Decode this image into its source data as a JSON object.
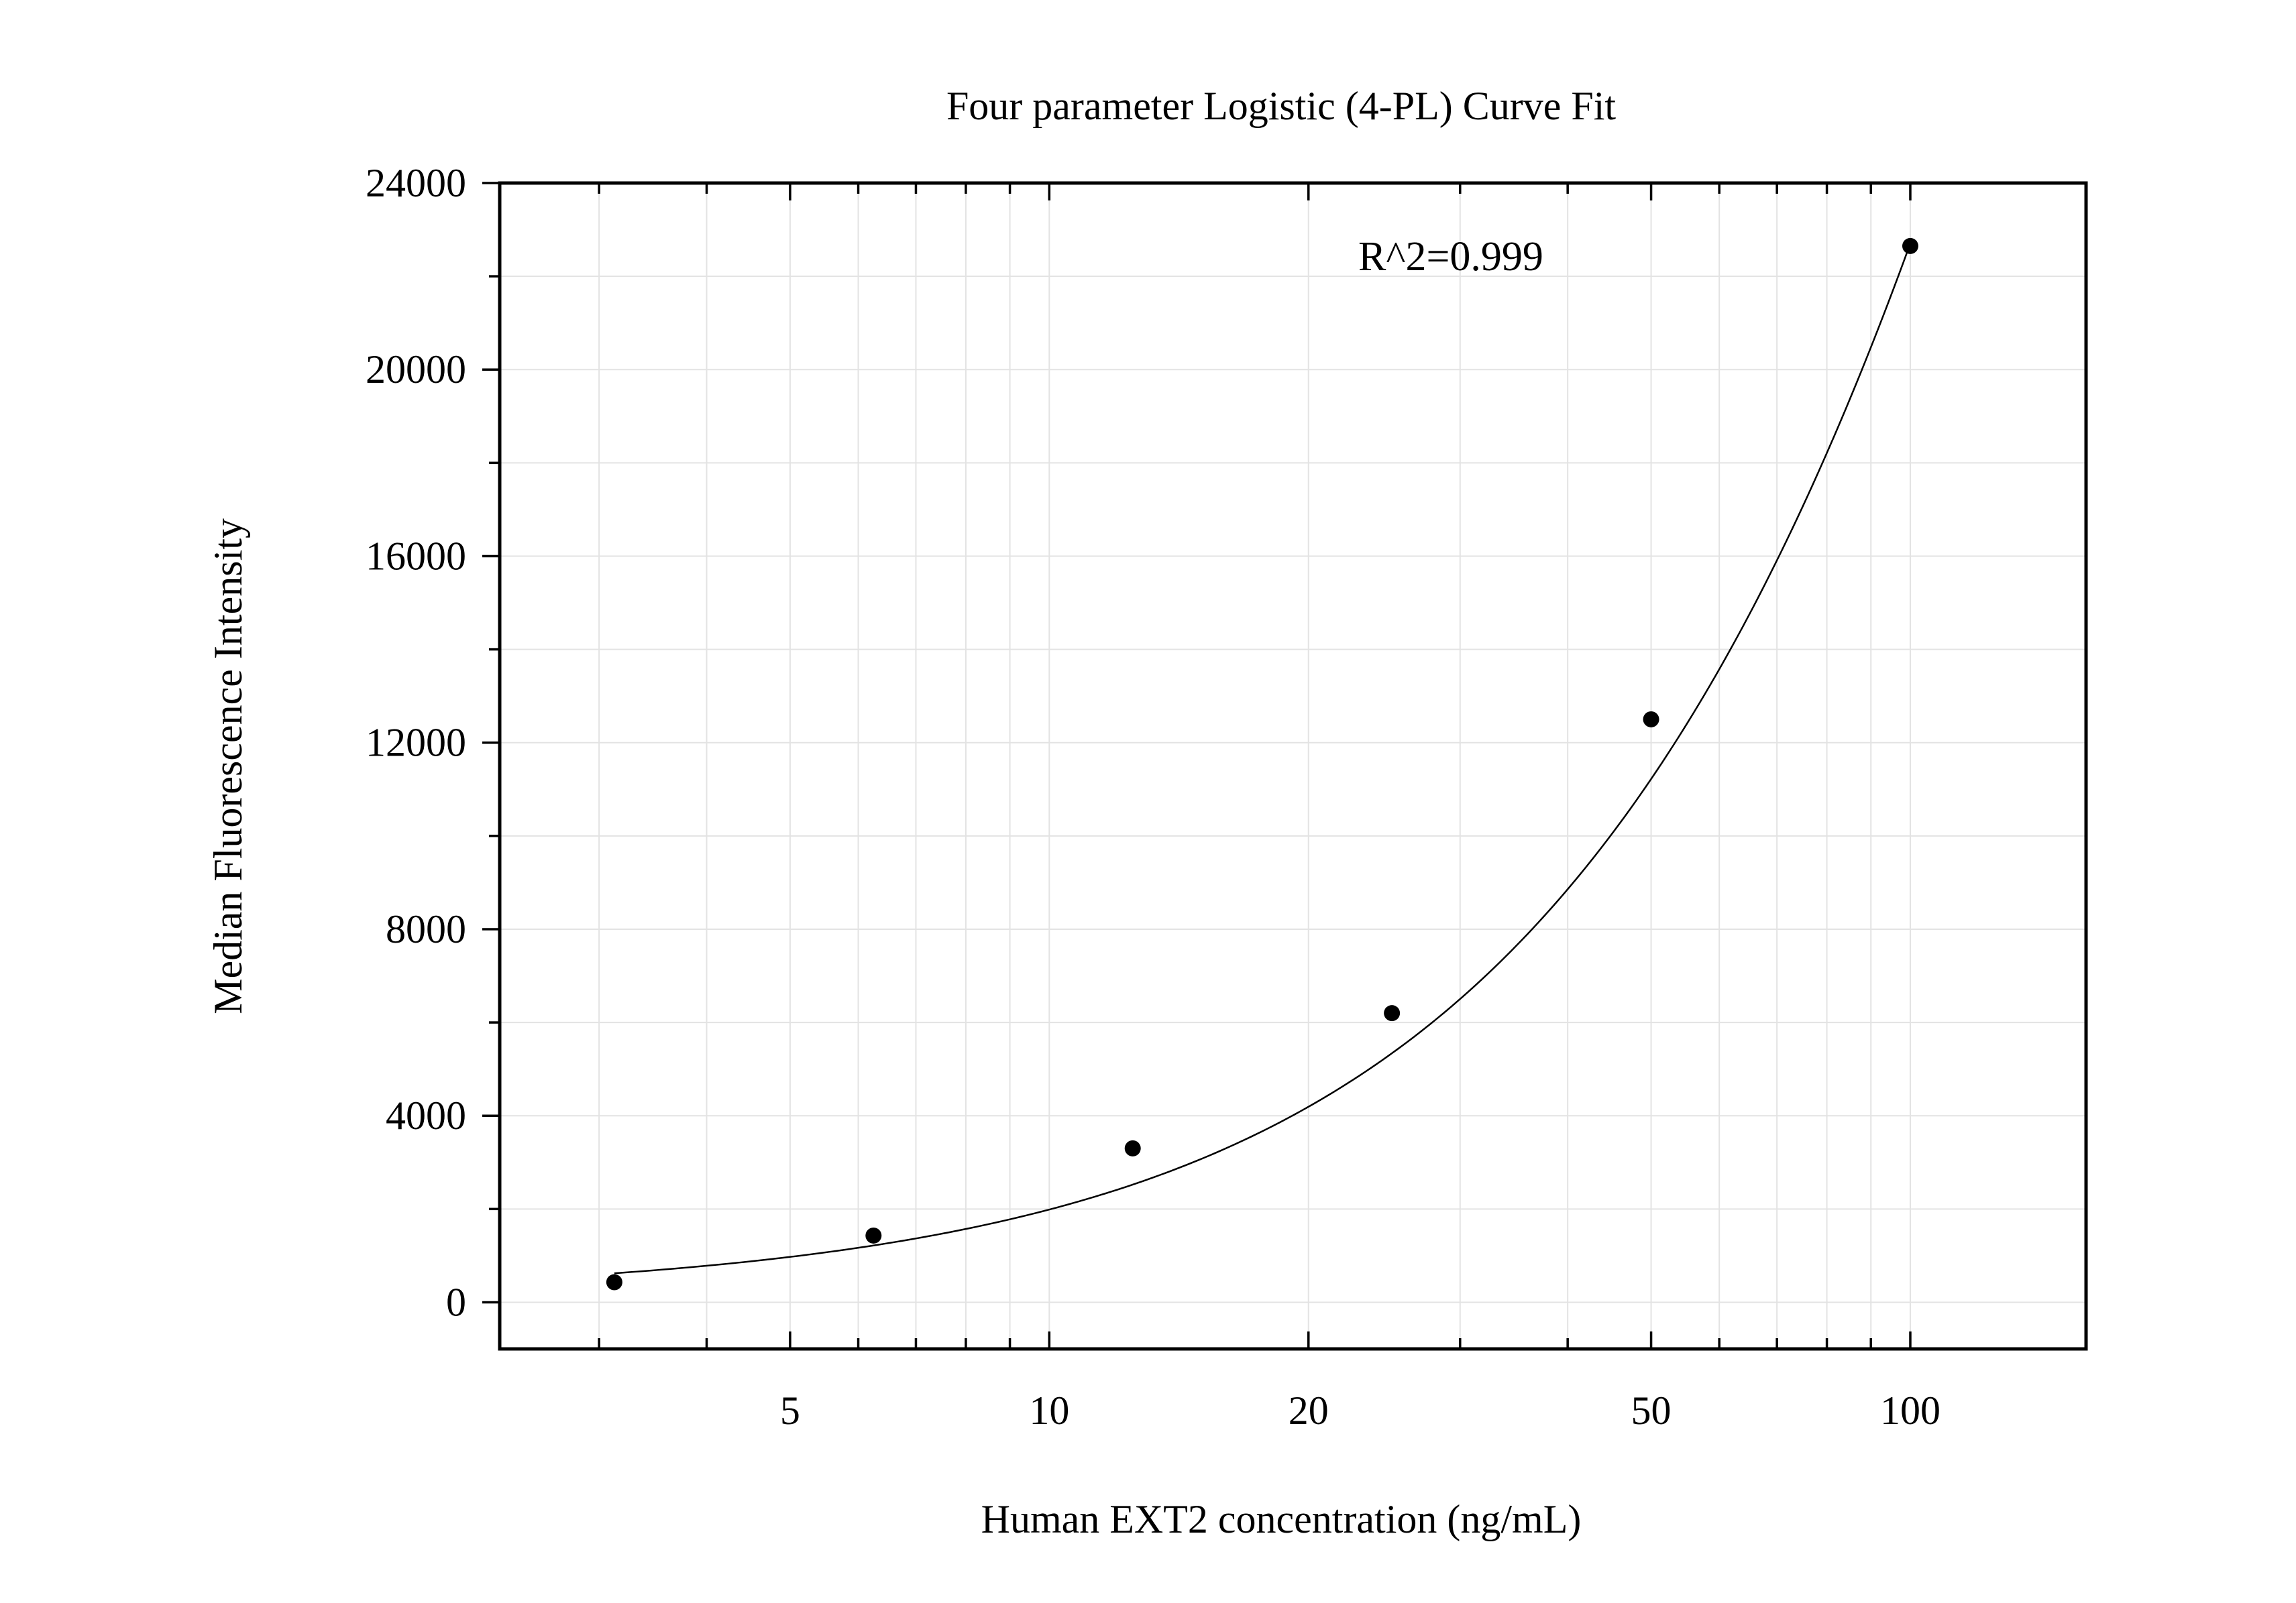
{
  "chart_data": {
    "type": "scatter",
    "title": "Four parameter Logistic (4-PL) Curve Fit",
    "xlabel": "Human EXT2 concentration (ng/mL)",
    "ylabel": "Median Fluorescence Intensity",
    "annotation": "R^2=0.999",
    "x_scale": "log",
    "xlim": [
      2.3,
      160
    ],
    "ylim": [
      -1000,
      24000
    ],
    "x_ticks": [
      5,
      10,
      20,
      50,
      100
    ],
    "x_tick_labels": [
      "5",
      "10",
      "20",
      "50",
      "100"
    ],
    "y_ticks": [
      0,
      4000,
      8000,
      12000,
      16000,
      20000,
      24000
    ],
    "y_tick_labels": [
      "0",
      "4000",
      "8000",
      "12000",
      "16000",
      "20000",
      "24000"
    ],
    "grid": true,
    "series": [
      {
        "kind": "points",
        "x": [
          3.125,
          6.25,
          12.5,
          25,
          50,
          100
        ],
        "y": [
          430,
          1430,
          3300,
          6200,
          12500,
          22650
        ]
      },
      {
        "kind": "fit-line",
        "model": "4PL",
        "parameters": {
          "A": 130,
          "B": 1.15,
          "C": 450,
          "D": 150000
        }
      }
    ],
    "colors": {
      "points": "#000000",
      "curve": "#000000",
      "grid": "#e3e3e3",
      "frame": "#000000"
    }
  }
}
